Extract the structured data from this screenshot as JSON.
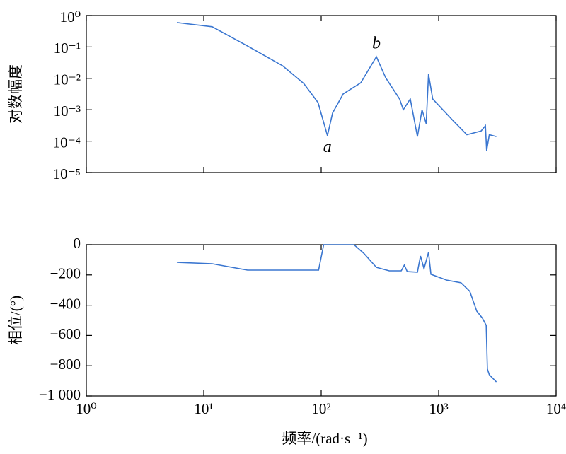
{
  "chart_data": [
    {
      "type": "line",
      "ylabel": "对数幅度",
      "log_x": true,
      "log_y": true,
      "xlim": [
        1,
        10000
      ],
      "xticks": [
        1,
        10,
        100,
        1000,
        10000
      ],
      "ylim": [
        1e-05,
        1
      ],
      "yticks": [
        {
          "value": 1,
          "label": "10⁰"
        },
        {
          "value": 0.1,
          "label": "10⁻¹"
        },
        {
          "value": 0.01,
          "label": "10⁻²"
        },
        {
          "value": 0.001,
          "label": "10⁻³"
        },
        {
          "value": 0.0001,
          "label": "10⁻⁴"
        },
        {
          "value": 1e-05,
          "label": "10⁻⁵"
        }
      ],
      "annotations": [
        {
          "text": "a",
          "x": 113,
          "y": 6e-05
        },
        {
          "text": "b",
          "x": 295,
          "y": 0.12
        }
      ],
      "series": [
        {
          "color": "#3a76d0",
          "x": [
            5.9,
            11.8,
            23.6,
            47,
            71,
            94,
            113,
            125,
            154,
            217,
            295,
            354,
            465,
            500,
            573,
            660,
            722,
            783,
            820,
            890,
            1320,
            1740,
            2300,
            2500,
            2560,
            2700,
            3100
          ],
          "values": [
            0.6,
            0.44,
            0.107,
            0.025,
            0.0069,
            0.0017,
            0.00015,
            0.00079,
            0.0032,
            0.0072,
            0.049,
            0.0105,
            0.0022,
            0.001,
            0.0022,
            0.00014,
            0.001,
            0.00036,
            0.0135,
            0.0022,
            0.00046,
            0.00016,
            0.00021,
            0.00031,
            5e-05,
            0.00016,
            0.00014
          ]
        }
      ]
    },
    {
      "type": "line",
      "ylabel": "相位/(°)",
      "xlabel": "频率/(rad·s⁻¹)",
      "log_x": true,
      "xlim": [
        1,
        10000
      ],
      "xticks": [
        {
          "value": 1,
          "label": "10⁰"
        },
        {
          "value": 10,
          "label": "10¹"
        },
        {
          "value": 100,
          "label": "10²"
        },
        {
          "value": 1000,
          "label": "10³"
        },
        {
          "value": 10000,
          "label": "10⁴"
        }
      ],
      "ylim": [
        -1000,
        0
      ],
      "yticks": [
        0,
        {
          "value": -200,
          "label": "−200"
        },
        {
          "value": -400,
          "label": "−400"
        },
        {
          "value": -600,
          "label": "−600"
        },
        {
          "value": -800,
          "label": "−800"
        },
        {
          "value": -1000,
          "label": "−1 000"
        }
      ],
      "series": [
        {
          "color": "#3a76d0",
          "x": [
            5.9,
            11.8,
            23.6,
            47,
            95,
            105,
            190,
            230,
            295,
            380,
            480,
            510,
            540,
            660,
            700,
            750,
            820,
            860,
            1170,
            1550,
            1840,
            2110,
            2360,
            2540,
            2600,
            2700,
            3100
          ],
          "values": [
            -117,
            -126,
            -168,
            -168,
            -168,
            0,
            0,
            -56,
            -150,
            -173,
            -173,
            -135,
            -178,
            -182,
            -75,
            -159,
            -51,
            -196,
            -234,
            -252,
            -308,
            -439,
            -486,
            -533,
            -822,
            -860,
            -907
          ]
        }
      ]
    }
  ]
}
